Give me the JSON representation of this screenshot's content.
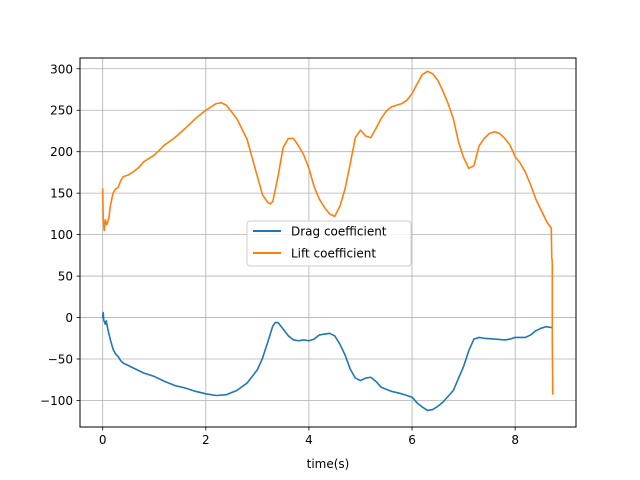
{
  "chart_data": {
    "type": "line",
    "xlabel": "time(s)",
    "ylabel": "",
    "title": "",
    "xlim": [
      -0.44,
      9.18
    ],
    "ylim": [
      -132,
      313
    ],
    "xticks": [
      0,
      2,
      4,
      6,
      8
    ],
    "yticks": [
      -100,
      -50,
      0,
      50,
      100,
      150,
      200,
      250,
      300
    ],
    "grid": true,
    "legend_position": "center",
    "series": [
      {
        "name": "Drag coefficient",
        "color": "#1f77b4",
        "points": [
          [
            0.0,
            0
          ],
          [
            0.01,
            6
          ],
          [
            0.02,
            -3
          ],
          [
            0.05,
            -8
          ],
          [
            0.07,
            -4
          ],
          [
            0.1,
            -14
          ],
          [
            0.15,
            -27
          ],
          [
            0.2,
            -38
          ],
          [
            0.25,
            -44
          ],
          [
            0.3,
            -47
          ],
          [
            0.35,
            -52
          ],
          [
            0.4,
            -55
          ],
          [
            0.5,
            -58
          ],
          [
            0.6,
            -61
          ],
          [
            0.8,
            -67
          ],
          [
            1.0,
            -71
          ],
          [
            1.2,
            -77
          ],
          [
            1.4,
            -82
          ],
          [
            1.6,
            -85
          ],
          [
            1.8,
            -89
          ],
          [
            2.0,
            -92
          ],
          [
            2.2,
            -94
          ],
          [
            2.4,
            -93
          ],
          [
            2.6,
            -88
          ],
          [
            2.8,
            -79
          ],
          [
            3.0,
            -63
          ],
          [
            3.1,
            -49
          ],
          [
            3.2,
            -30
          ],
          [
            3.3,
            -10
          ],
          [
            3.35,
            -6
          ],
          [
            3.4,
            -6
          ],
          [
            3.5,
            -14
          ],
          [
            3.6,
            -22
          ],
          [
            3.7,
            -27
          ],
          [
            3.8,
            -28
          ],
          [
            3.9,
            -27
          ],
          [
            4.0,
            -28
          ],
          [
            4.1,
            -26
          ],
          [
            4.2,
            -21
          ],
          [
            4.4,
            -19
          ],
          [
            4.5,
            -22
          ],
          [
            4.6,
            -32
          ],
          [
            4.7,
            -45
          ],
          [
            4.8,
            -62
          ],
          [
            4.9,
            -73
          ],
          [
            5.0,
            -76
          ],
          [
            5.1,
            -73
          ],
          [
            5.2,
            -72
          ],
          [
            5.3,
            -77
          ],
          [
            5.4,
            -84
          ],
          [
            5.6,
            -89
          ],
          [
            5.8,
            -92
          ],
          [
            6.0,
            -96
          ],
          [
            6.1,
            -103
          ],
          [
            6.2,
            -108
          ],
          [
            6.3,
            -112
          ],
          [
            6.4,
            -111
          ],
          [
            6.5,
            -107
          ],
          [
            6.6,
            -102
          ],
          [
            6.8,
            -88
          ],
          [
            7.0,
            -59
          ],
          [
            7.1,
            -40
          ],
          [
            7.2,
            -26
          ],
          [
            7.3,
            -24
          ],
          [
            7.4,
            -25
          ],
          [
            7.6,
            -26
          ],
          [
            7.8,
            -27
          ],
          [
            7.9,
            -26
          ],
          [
            8.0,
            -24
          ],
          [
            8.1,
            -24
          ],
          [
            8.2,
            -24
          ],
          [
            8.3,
            -21
          ],
          [
            8.4,
            -16
          ],
          [
            8.5,
            -13
          ],
          [
            8.6,
            -11
          ],
          [
            8.7,
            -12
          ],
          [
            8.71,
            -12
          ]
        ]
      },
      {
        "name": "Lift coefficient",
        "color": "#ff7f0e",
        "points": [
          [
            0.0,
            155
          ],
          [
            0.01,
            118
          ],
          [
            0.03,
            105
          ],
          [
            0.05,
            118
          ],
          [
            0.08,
            112
          ],
          [
            0.12,
            120
          ],
          [
            0.15,
            135
          ],
          [
            0.2,
            150
          ],
          [
            0.25,
            155
          ],
          [
            0.3,
            157
          ],
          [
            0.35,
            165
          ],
          [
            0.4,
            170
          ],
          [
            0.5,
            172
          ],
          [
            0.6,
            176
          ],
          [
            0.7,
            181
          ],
          [
            0.8,
            188
          ],
          [
            0.9,
            192
          ],
          [
            1.0,
            196
          ],
          [
            1.2,
            208
          ],
          [
            1.4,
            217
          ],
          [
            1.6,
            228
          ],
          [
            1.8,
            240
          ],
          [
            2.0,
            250
          ],
          [
            2.1,
            254
          ],
          [
            2.2,
            258
          ],
          [
            2.3,
            259
          ],
          [
            2.4,
            256
          ],
          [
            2.6,
            240
          ],
          [
            2.8,
            215
          ],
          [
            3.0,
            170
          ],
          [
            3.1,
            148
          ],
          [
            3.2,
            139
          ],
          [
            3.25,
            137
          ],
          [
            3.3,
            140
          ],
          [
            3.4,
            170
          ],
          [
            3.5,
            205
          ],
          [
            3.6,
            216
          ],
          [
            3.7,
            216
          ],
          [
            3.8,
            207
          ],
          [
            3.9,
            196
          ],
          [
            4.0,
            180
          ],
          [
            4.1,
            158
          ],
          [
            4.2,
            143
          ],
          [
            4.3,
            133
          ],
          [
            4.4,
            125
          ],
          [
            4.5,
            122
          ],
          [
            4.6,
            134
          ],
          [
            4.7,
            155
          ],
          [
            4.8,
            185
          ],
          [
            4.9,
            217
          ],
          [
            5.0,
            226
          ],
          [
            5.1,
            219
          ],
          [
            5.2,
            217
          ],
          [
            5.3,
            228
          ],
          [
            5.4,
            240
          ],
          [
            5.5,
            249
          ],
          [
            5.6,
            254
          ],
          [
            5.7,
            256
          ],
          [
            5.8,
            258
          ],
          [
            5.9,
            262
          ],
          [
            6.0,
            270
          ],
          [
            6.1,
            282
          ],
          [
            6.2,
            293
          ],
          [
            6.3,
            297
          ],
          [
            6.4,
            294
          ],
          [
            6.5,
            286
          ],
          [
            6.6,
            273
          ],
          [
            6.7,
            258
          ],
          [
            6.8,
            240
          ],
          [
            6.9,
            212
          ],
          [
            7.0,
            193
          ],
          [
            7.1,
            180
          ],
          [
            7.2,
            183
          ],
          [
            7.3,
            207
          ],
          [
            7.4,
            216
          ],
          [
            7.5,
            222
          ],
          [
            7.6,
            224
          ],
          [
            7.7,
            222
          ],
          [
            7.8,
            216
          ],
          [
            7.9,
            208
          ],
          [
            8.0,
            194
          ],
          [
            8.1,
            186
          ],
          [
            8.2,
            175
          ],
          [
            8.3,
            160
          ],
          [
            8.4,
            143
          ],
          [
            8.5,
            130
          ],
          [
            8.6,
            117
          ],
          [
            8.65,
            112
          ],
          [
            8.7,
            108
          ],
          [
            8.71,
            72
          ],
          [
            8.72,
            68
          ],
          [
            8.72,
            -30
          ],
          [
            8.73,
            -92
          ]
        ]
      }
    ]
  }
}
